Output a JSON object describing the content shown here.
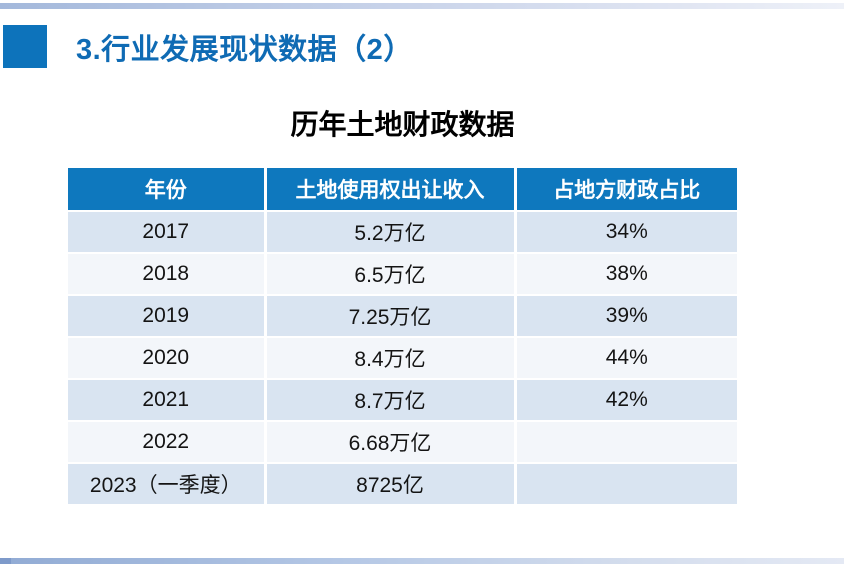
{
  "page": {
    "title": "3.行业发展现状数据（2）",
    "subtitle": "历年土地财政数据"
  },
  "table": {
    "columns": [
      "年份",
      "土地使用权出让收入",
      "占地方财政占比"
    ],
    "rows": [
      [
        "2017",
        "5.2万亿",
        "34%"
      ],
      [
        "2018",
        "6.5万亿",
        "38%"
      ],
      [
        "2019",
        "7.25万亿",
        "39%"
      ],
      [
        "2020",
        "8.4万亿",
        "44%"
      ],
      [
        "2021",
        "8.7万亿",
        "42%"
      ],
      [
        "2022",
        "6.68万亿",
        ""
      ],
      [
        "2023（一季度）",
        "8725亿",
        ""
      ]
    ]
  },
  "chart_data": {
    "type": "table",
    "title": "历年土地财政数据",
    "columns": [
      "年份",
      "土地使用权出让收入",
      "占地方财政占比"
    ],
    "rows": [
      [
        "2017",
        "5.2万亿",
        "34%"
      ],
      [
        "2018",
        "6.5万亿",
        "38%"
      ],
      [
        "2019",
        "7.25万亿",
        "39%"
      ],
      [
        "2020",
        "8.4万亿",
        "44%"
      ],
      [
        "2021",
        "8.7万亿",
        "42%"
      ],
      [
        "2022",
        "6.68万亿",
        ""
      ],
      [
        "2023（一季度）",
        "8725亿",
        ""
      ]
    ]
  },
  "colors": {
    "accent_blue": "#0e78be",
    "title_text": "#0f6bb4",
    "header_bg": "#0e78be",
    "header_text": "#ffffff",
    "row_odd": "#d9e4f1",
    "row_even": "#f3f6fa",
    "top_bar_gradient_left": "#a3b8db",
    "top_bar_gradient_right": "#eef1f8",
    "bottom_bar_gradient_left": "#91abd4",
    "bottom_bar_gradient_right": "#e4e9f4"
  }
}
